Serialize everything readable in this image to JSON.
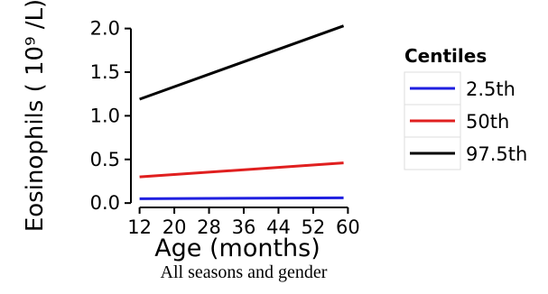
{
  "chart_data": {
    "type": "line",
    "xlabel": "Age (months)",
    "ylabel": "Eosinophils ( 10⁹ /L)",
    "x_ticks": [
      12,
      20,
      28,
      36,
      44,
      52,
      60
    ],
    "y_ticks": [
      "0.0",
      "0.5",
      "1.0",
      "1.5",
      "2.0"
    ],
    "xlim": [
      10,
      62
    ],
    "ylim": [
      -0.05,
      2.12
    ],
    "legend_title": "Centiles",
    "legend_position": "right",
    "series": [
      {
        "name": "2.5th",
        "color": "#1f1fe0",
        "x": [
          12,
          59
        ],
        "y": [
          0.05,
          0.06
        ]
      },
      {
        "name": "50th",
        "color": "#e01f1f",
        "x": [
          12,
          59
        ],
        "y": [
          0.3,
          0.46
        ]
      },
      {
        "name": "97.5th",
        "color": "#000000",
        "x": [
          12,
          59
        ],
        "y": [
          1.19,
          2.03
        ]
      }
    ],
    "caption": "All seasons and gender"
  }
}
